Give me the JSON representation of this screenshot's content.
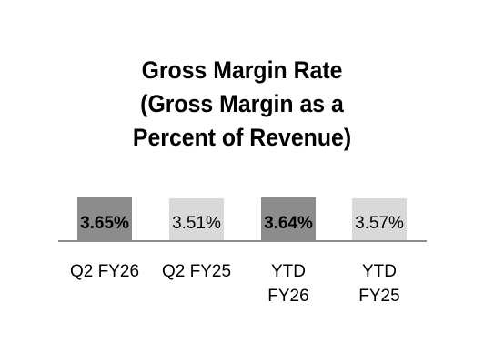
{
  "chart_data": {
    "type": "bar",
    "title_lines": [
      "Gross Margin Rate",
      "(Gross Margin as a",
      "Percent of Revenue)"
    ],
    "categories": [
      [
        "Q2 FY26"
      ],
      [
        "Q2 FY25"
      ],
      [
        "YTD",
        "FY26"
      ],
      [
        "YTD",
        "FY25"
      ]
    ],
    "values": [
      3.65,
      3.51,
      3.64,
      3.57
    ],
    "value_labels": [
      "3.65%",
      "3.51%",
      "3.64%",
      "3.57%"
    ],
    "value_label_bold": [
      true,
      false,
      true,
      false
    ],
    "bar_colors": [
      "#8c8c8c",
      "#d9d9d9",
      "#8c8c8c",
      "#d9d9d9"
    ],
    "baseline_color": "#8c8c8c",
    "xlabel": "",
    "ylabel": "",
    "grid": false,
    "legend": "none"
  }
}
